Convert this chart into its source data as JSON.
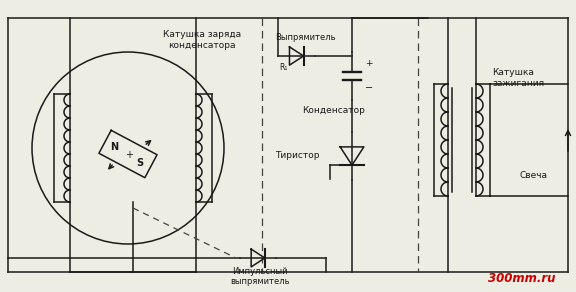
{
  "bg_color": "#eeede3",
  "line_color": "#1a1a1a",
  "dashed_color": "#444444",
  "text_color": "#1a1a1a",
  "red_color": "#cc0000",
  "labels": {
    "coil_charge": "Катушка заряда\nконденсатора",
    "rectifier": "Выпрямитель",
    "capacitor": "Конденсатор",
    "thyristor": "Тиристор",
    "ignition_coil": "Катушка\nзажигания",
    "spark": "Свеча",
    "pulse_rect": "Импульсный\nвыпрямитель",
    "R1": "R₁",
    "N": "N",
    "S": "S",
    "plus": "+",
    "watermark": "300mm.ru"
  }
}
